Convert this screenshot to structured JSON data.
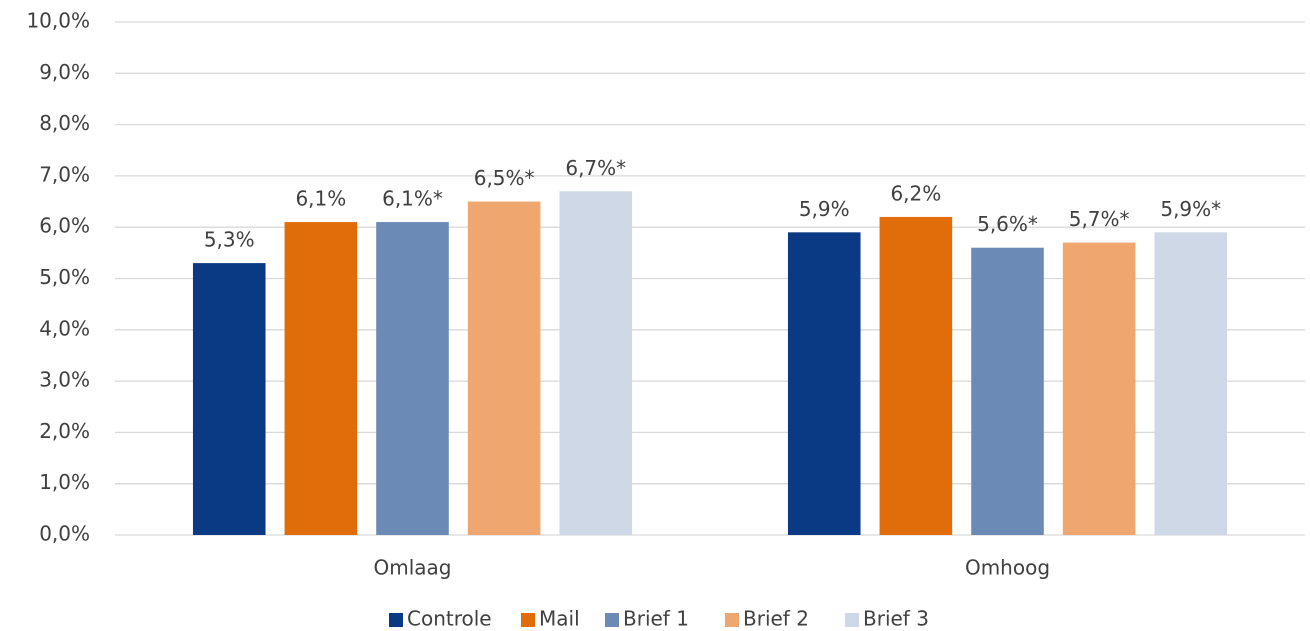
{
  "chart_data": {
    "type": "bar",
    "categories": [
      "Omlaag",
      "Omhoog"
    ],
    "series": [
      {
        "name": "Controle",
        "color": "#0b3a84",
        "values": [
          5.3,
          5.9
        ],
        "value_labels": [
          "5,3%",
          "5,9%"
        ]
      },
      {
        "name": "Mail",
        "color": "#e06c0a",
        "values": [
          6.1,
          6.2
        ],
        "value_labels": [
          "6,1%",
          "6,2%"
        ]
      },
      {
        "name": "Brief 1",
        "color": "#6b8ab5",
        "values": [
          6.1,
          5.6
        ],
        "value_labels": [
          "6,1%*",
          "5,6%*"
        ]
      },
      {
        "name": "Brief 2",
        "color": "#efa76f",
        "values": [
          6.5,
          5.7
        ],
        "value_labels": [
          "6,5%*",
          "5,7%*"
        ]
      },
      {
        "name": "Brief 3",
        "color": "#ced8e6",
        "values": [
          6.7,
          5.9
        ],
        "value_labels": [
          "6,7%*",
          "5,9%*"
        ]
      }
    ],
    "ylim": [
      0,
      10
    ],
    "yticks": [
      {
        "value": 0,
        "label": "0,0%"
      },
      {
        "value": 1,
        "label": "1,0%"
      },
      {
        "value": 2,
        "label": "2,0%"
      },
      {
        "value": 3,
        "label": "3,0%"
      },
      {
        "value": 4,
        "label": "4,0%"
      },
      {
        "value": 5,
        "label": "5,0%"
      },
      {
        "value": 6,
        "label": "6,0%"
      },
      {
        "value": 7,
        "label": "7,0%"
      },
      {
        "value": 8,
        "label": "8,0%"
      },
      {
        "value": 9,
        "label": "9,0%"
      },
      {
        "value": 10,
        "label": "10,0%"
      }
    ],
    "grid": true,
    "legend": "bottom"
  }
}
